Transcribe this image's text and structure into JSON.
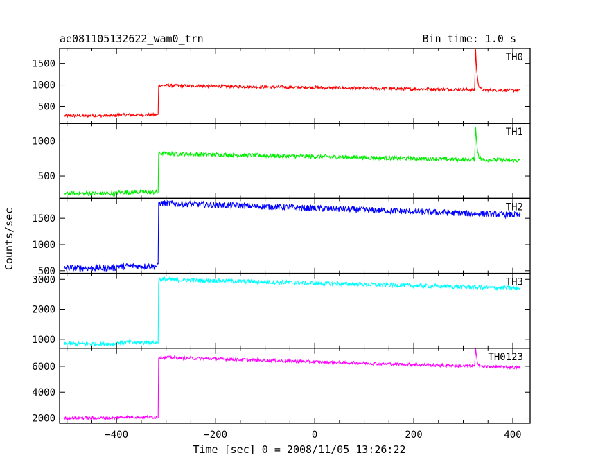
{
  "chart_data": {
    "type": "line",
    "title_left": "ae081105132622_wam0_trn",
    "title_right": "Bin time: 1.0 s",
    "xlabel": "Time [sec] 0 = 2008/11/05 13:26:22",
    "ylabel": "Counts/sec",
    "xlim": [
      -515,
      435
    ],
    "x_ticks": [
      -400,
      -200,
      0,
      200,
      400
    ],
    "x_tick_labels": [
      "−400",
      "−200",
      "0",
      "200",
      "400"
    ],
    "series_x_range": [
      -505,
      415
    ],
    "step_time": -315,
    "panels": [
      {
        "name": "TH0",
        "color": "#ff0000",
        "ylim": [
          100,
          1850
        ],
        "y_ticks": [
          500,
          1000,
          1500
        ],
        "pre_level": 280,
        "post_level": 990,
        "end_level": 870,
        "noise": 35,
        "spikes": [
          {
            "t": 325,
            "peak": 1840
          }
        ]
      },
      {
        "name": "TH1",
        "color": "#00ee00",
        "ylim": [
          180,
          1250
        ],
        "y_ticks": [
          500,
          1000
        ],
        "pre_level": 250,
        "post_level": 820,
        "end_level": 720,
        "noise": 30,
        "spikes": [
          {
            "t": 325,
            "peak": 1230
          }
        ]
      },
      {
        "name": "TH2",
        "color": "#0000ff",
        "ylim": [
          450,
          1880
        ],
        "y_ticks": [
          500,
          1000,
          1500
        ],
        "pre_level": 550,
        "post_level": 1790,
        "end_level": 1560,
        "noise": 60,
        "spikes": []
      },
      {
        "name": "TH3",
        "color": "#00ffff",
        "ylim": [
          700,
          3200
        ],
        "y_ticks": [
          1000,
          2000,
          3000
        ],
        "pre_level": 850,
        "post_level": 3000,
        "end_level": 2700,
        "noise": 70,
        "spikes": []
      },
      {
        "name": "TH0123",
        "color": "#ff00ff",
        "ylim": [
          1600,
          7400
        ],
        "y_ticks": [
          2000,
          4000,
          6000
        ],
        "pre_level": 2000,
        "post_level": 6700,
        "end_level": 5900,
        "noise": 120,
        "spikes": [
          {
            "t": 325,
            "peak": 7350
          }
        ]
      }
    ]
  }
}
